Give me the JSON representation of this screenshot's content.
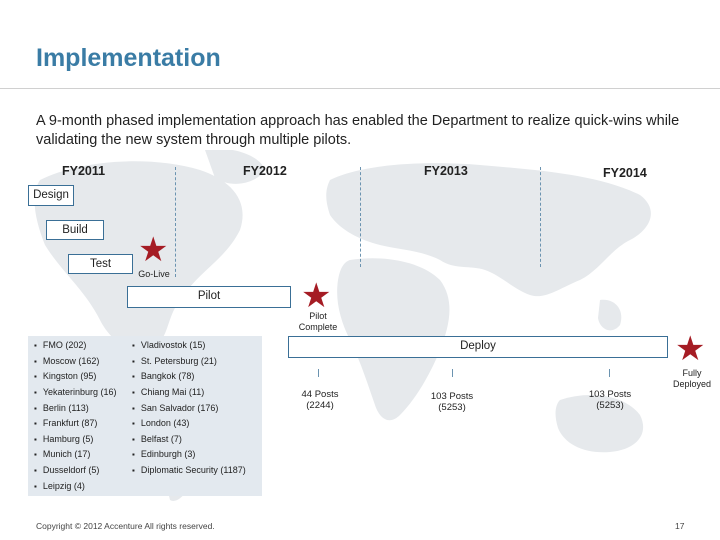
{
  "title": "Implementation",
  "intro": "A 9-month phased implementation approach has enabled the Department to realize quick-wins while validating the new system through multiple pilots.",
  "fiscal_years": [
    "FY2011",
    "FY2012",
    "FY2013",
    "FY2014"
  ],
  "phases": {
    "design": "Design",
    "build": "Build",
    "test": "Test",
    "pilot": "Pilot",
    "deploy": "Deploy"
  },
  "milestones": {
    "go_live": "Go-Live",
    "pilot_complete_1": "Pilot",
    "pilot_complete_2": "Complete",
    "fully_deployed_1": "Fully",
    "fully_deployed_2": "Deployed"
  },
  "pilot_sites": {
    "col1": [
      "FMO (202)",
      "Moscow (162)",
      "Kingston (95)",
      "Yekaterinburg (16)",
      "Berlin (113)",
      "Frankfurt (87)",
      "Hamburg (5)",
      "Munich (17)",
      "Dusseldorf (5)",
      "Leipzig (4)"
    ],
    "col2": [
      "Vladivostok (15)",
      "St. Petersburg (21)",
      "Bangkok (78)",
      "Chiang Mai (11)",
      "San Salvador (176)",
      "London (43)",
      "Belfast (7)",
      "Edinburgh (3)",
      "Diplomatic Security (1187)"
    ]
  },
  "deploy_waves": [
    {
      "posts": "44 Posts",
      "count": "(2244)"
    },
    {
      "posts": "103 Posts",
      "count": "(5253)"
    },
    {
      "posts": "103 Posts",
      "count": "(5253)"
    }
  ],
  "footer": "Copyright © 2012 Accenture  All rights reserved.",
  "page_number": "17",
  "colors": {
    "title": "#3a7ca5",
    "star": "#a51c24",
    "box_border": "#3a6f96",
    "panel": "#e3e9ef",
    "map": "#e6e9ec"
  },
  "icons": [
    "star-icon"
  ]
}
